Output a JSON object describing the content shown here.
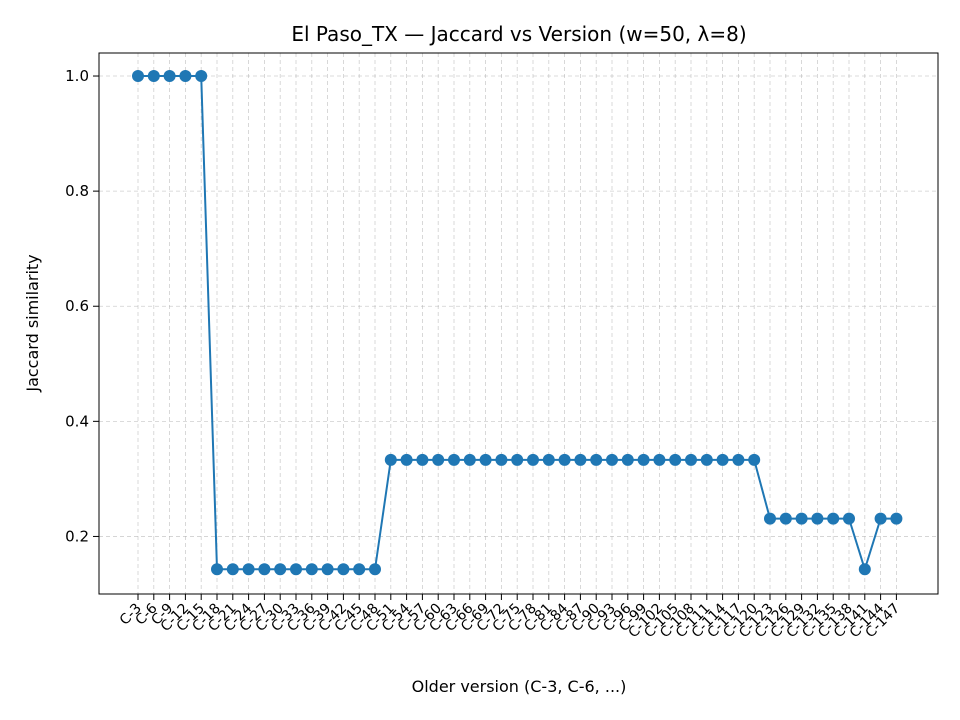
{
  "chart_data": {
    "type": "line",
    "title": "El Paso_TX — Jaccard vs Version (w=50, λ=8)",
    "xlabel": "Older version (C-3, C-6, ...)",
    "ylabel": "Jaccard similarity",
    "ylim": [
      0.1,
      1.04
    ],
    "yticks": [
      0.2,
      0.4,
      0.6,
      0.8,
      1.0
    ],
    "grid": true,
    "categories": [
      "C-3",
      "C-6",
      "C-9",
      "C-12",
      "C-15",
      "C-18",
      "C-21",
      "C-24",
      "C-27",
      "C-30",
      "C-33",
      "C-36",
      "C-39",
      "C-42",
      "C-45",
      "C-48",
      "C-51",
      "C-54",
      "C-57",
      "C-60",
      "C-63",
      "C-66",
      "C-69",
      "C-72",
      "C-75",
      "C-78",
      "C-81",
      "C-84",
      "C-87",
      "C-90",
      "C-93",
      "C-96",
      "C-99",
      "C-102",
      "C-105",
      "C-108",
      "C-111",
      "C-114",
      "C-117",
      "C-120",
      "C-123",
      "C-126",
      "C-129",
      "C-132",
      "C-135",
      "C-138",
      "C-141",
      "C-144",
      "C-147"
    ],
    "series": [
      {
        "color": "#1f77b4",
        "values": [
          1.0,
          1.0,
          1.0,
          1.0,
          1.0,
          0.143,
          0.143,
          0.143,
          0.143,
          0.143,
          0.143,
          0.143,
          0.143,
          0.143,
          0.143,
          0.143,
          0.333,
          0.333,
          0.333,
          0.333,
          0.333,
          0.333,
          0.333,
          0.333,
          0.333,
          0.333,
          0.333,
          0.333,
          0.333,
          0.333,
          0.333,
          0.333,
          0.333,
          0.333,
          0.333,
          0.333,
          0.333,
          0.333,
          0.333,
          0.333,
          0.231,
          0.231,
          0.231,
          0.231,
          0.231,
          0.231,
          0.143,
          0.231,
          0.231
        ]
      }
    ]
  }
}
